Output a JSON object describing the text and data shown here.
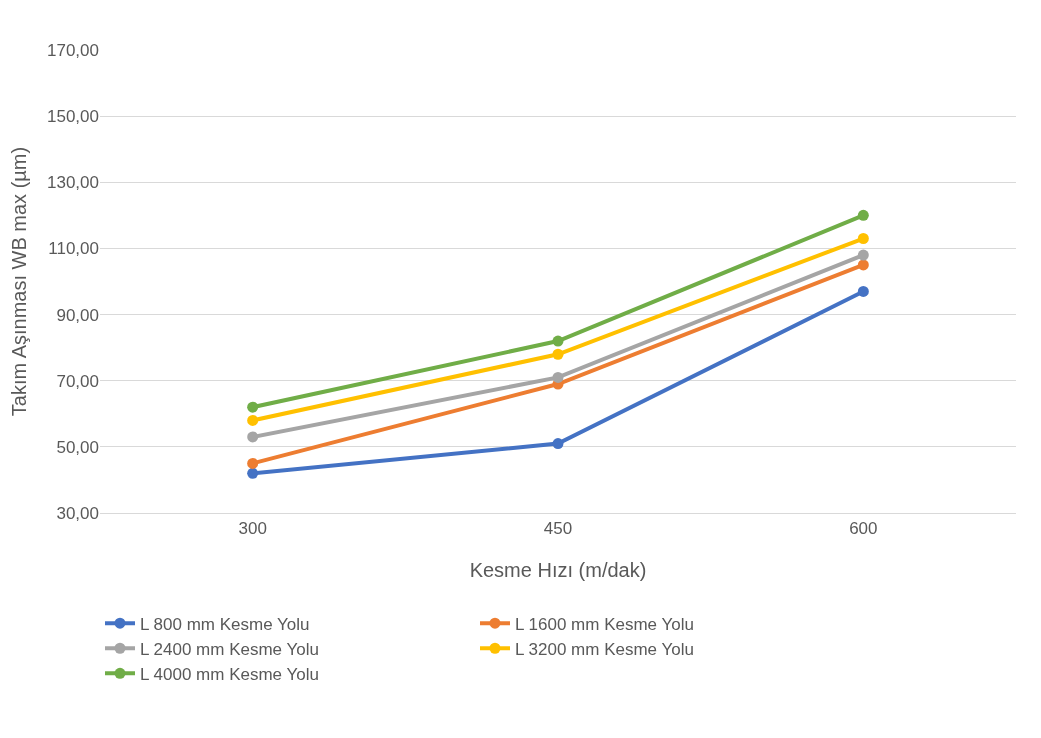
{
  "chart_data": {
    "type": "line",
    "xlabel": "Kesme Hızı (m/dak)",
    "ylabel": "Takım Aşınması WB max (µm)",
    "categories": [
      "300",
      "450",
      "600"
    ],
    "series": [
      {
        "name": "L 800 mm Kesme Yolu",
        "color": "#4472c4",
        "values": [
          42,
          51,
          97
        ]
      },
      {
        "name": "L 1600 mm Kesme Yolu",
        "color": "#ed7d31",
        "values": [
          45,
          69,
          105
        ]
      },
      {
        "name": "L 2400 mm Kesme Yolu",
        "color": "#a5a5a5",
        "values": [
          53,
          71,
          108
        ]
      },
      {
        "name": "L 3200 mm Kesme Yolu",
        "color": "#ffc000",
        "values": [
          58,
          78,
          113
        ]
      },
      {
        "name": "L 4000 mm Kesme Yolu",
        "color": "#70ad47",
        "values": [
          62,
          82,
          120
        ]
      }
    ],
    "ylim": [
      30,
      170
    ],
    "yticks": [
      {
        "value": 30,
        "label": "30,00"
      },
      {
        "value": 50,
        "label": "50,00"
      },
      {
        "value": 70,
        "label": "70,00"
      },
      {
        "value": 90,
        "label": "90,00"
      },
      {
        "value": 110,
        "label": "110,00"
      },
      {
        "value": 130,
        "label": "130,00"
      },
      {
        "value": 150,
        "label": "150,00"
      },
      {
        "value": 170,
        "label": "170,00"
      }
    ],
    "grid": "y",
    "legend": "bottom",
    "marker": "circle",
    "line_style": "solid"
  }
}
